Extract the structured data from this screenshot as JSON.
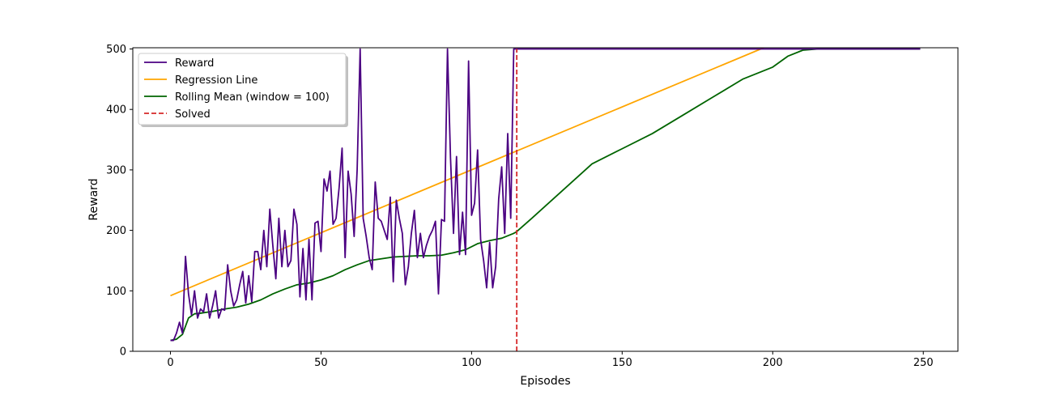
{
  "chart_data": {
    "type": "line",
    "title": "",
    "xlabel": "Episodes",
    "ylabel": "Reward",
    "xlim": [
      -12.5,
      261.5
    ],
    "ylim": [
      0,
      502
    ],
    "xticks": [
      0,
      50,
      100,
      150,
      200,
      250
    ],
    "yticks": [
      0,
      100,
      200,
      300,
      400,
      500
    ],
    "grid": false,
    "legend": {
      "placement": "top-left",
      "entries": [
        {
          "label": "Reward",
          "color": "#4b0082",
          "style": "solid"
        },
        {
          "label": "Regression Line",
          "color": "#ffa500",
          "style": "solid"
        },
        {
          "label": "Rolling Mean (window = 100)",
          "color": "#006400",
          "style": "solid"
        },
        {
          "label": "Solved",
          "color": "#d62728",
          "style": "dashed"
        }
      ]
    },
    "series": [
      {
        "name": "Reward",
        "color": "#4b0082",
        "x": [
          0,
          1,
          2,
          3,
          4,
          5,
          6,
          7,
          8,
          9,
          10,
          11,
          12,
          13,
          14,
          15,
          16,
          17,
          18,
          19,
          20,
          21,
          22,
          23,
          24,
          25,
          26,
          27,
          28,
          29,
          30,
          31,
          32,
          33,
          34,
          35,
          36,
          37,
          38,
          39,
          40,
          41,
          42,
          43,
          44,
          45,
          46,
          47,
          48,
          49,
          50,
          51,
          52,
          53,
          54,
          55,
          56,
          57,
          58,
          59,
          60,
          61,
          62,
          63,
          64,
          65,
          66,
          67,
          68,
          69,
          70,
          71,
          72,
          73,
          74,
          75,
          76,
          77,
          78,
          79,
          80,
          81,
          82,
          83,
          84,
          85,
          86,
          87,
          88,
          89,
          90,
          91,
          92,
          93,
          94,
          95,
          96,
          97,
          98,
          99,
          100,
          101,
          102,
          103,
          104,
          105,
          106,
          107,
          108,
          109,
          110,
          111,
          112,
          113,
          114,
          115,
          249
        ],
        "values": [
          18,
          18,
          30,
          48,
          30,
          157,
          95,
          60,
          100,
          55,
          70,
          65,
          95,
          55,
          75,
          100,
          55,
          70,
          68,
          143,
          100,
          75,
          85,
          110,
          132,
          80,
          125,
          82,
          165,
          165,
          135,
          200,
          140,
          235,
          175,
          120,
          220,
          140,
          200,
          140,
          150,
          235,
          210,
          90,
          170,
          85,
          185,
          85,
          212,
          215,
          165,
          285,
          265,
          298,
          210,
          220,
          270,
          336,
          155,
          298,
          260,
          190,
          300,
          500,
          220,
          190,
          155,
          135,
          280,
          220,
          215,
          200,
          185,
          255,
          115,
          250,
          220,
          195,
          110,
          140,
          195,
          233,
          155,
          195,
          155,
          175,
          190,
          200,
          215,
          95,
          218,
          215,
          500,
          320,
          195,
          322,
          160,
          230,
          160,
          480,
          225,
          245,
          333,
          185,
          150,
          105,
          180,
          105,
          140,
          252,
          305,
          195,
          360,
          220,
          500,
          500,
          500
        ]
      },
      {
        "name": "Regression Line",
        "color": "#ffa500",
        "x": [
          0,
          197
        ],
        "values": [
          92,
          502
        ]
      },
      {
        "name": "Rolling Mean (window = 100)",
        "color": "#006400",
        "x": [
          0,
          2,
          4,
          6,
          8,
          10,
          14,
          18,
          22,
          26,
          30,
          34,
          38,
          42,
          46,
          50,
          54,
          58,
          62,
          66,
          70,
          74,
          78,
          82,
          86,
          90,
          94,
          98,
          102,
          106,
          110,
          114,
          115,
          120,
          130,
          140,
          150,
          160,
          170,
          180,
          190,
          200,
          205,
          210,
          215,
          249
        ],
        "values": [
          18,
          20,
          28,
          55,
          62,
          63,
          66,
          70,
          73,
          78,
          85,
          95,
          103,
          110,
          113,
          118,
          125,
          135,
          143,
          150,
          153,
          156,
          157,
          158,
          158,
          159,
          163,
          168,
          178,
          183,
          187,
          195,
          198,
          220,
          265,
          310,
          335,
          360,
          390,
          420,
          450,
          470,
          488,
          498,
          500,
          500
        ]
      },
      {
        "name": "Solved",
        "color": "#d62728",
        "style": "dashed",
        "x": [
          115,
          115
        ],
        "values": [
          0,
          500
        ]
      }
    ]
  }
}
